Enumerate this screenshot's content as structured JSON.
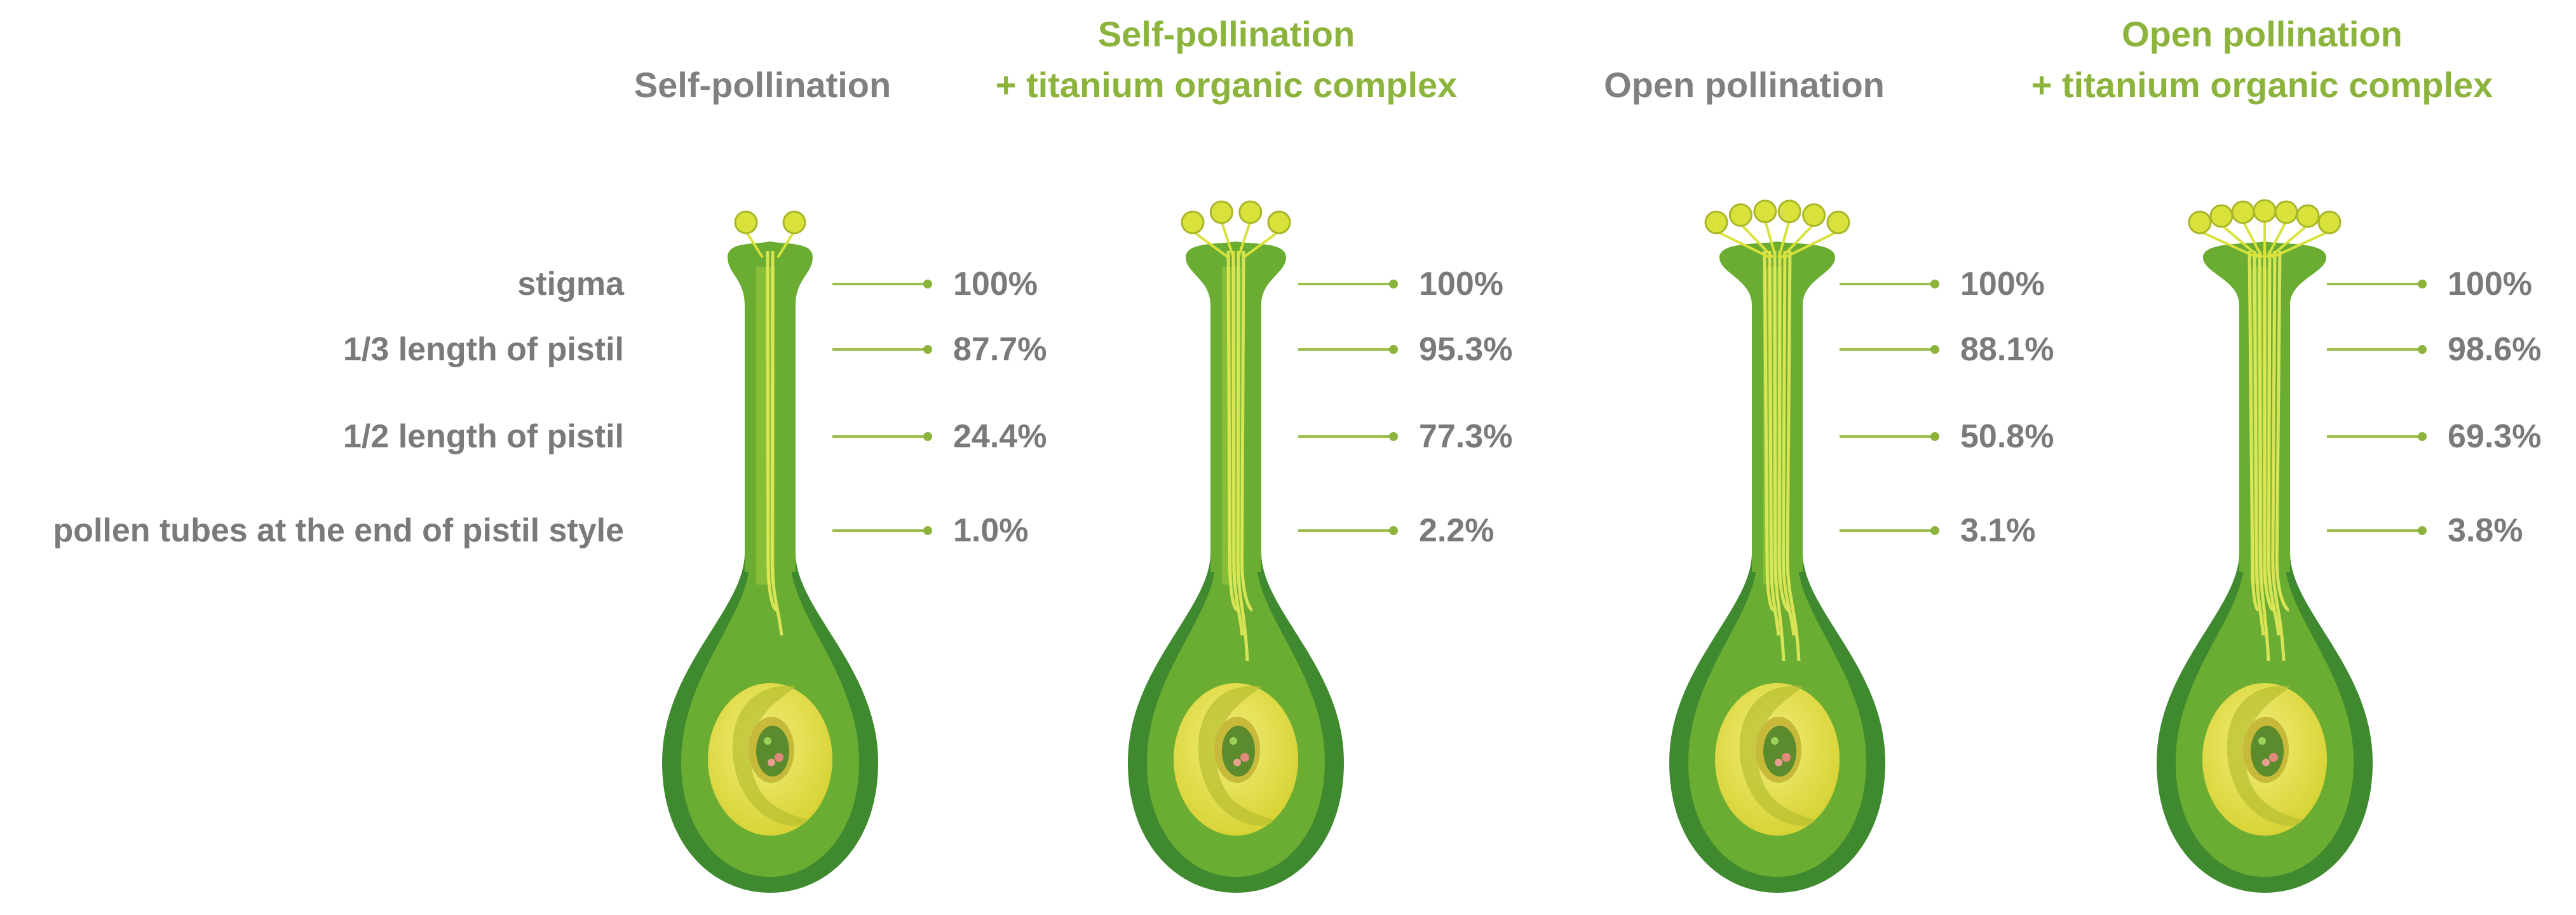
{
  "rows": [
    {
      "label": "stigma"
    },
    {
      "label": "1/3 length of pistil"
    },
    {
      "label": "1/2 length of pistil"
    },
    {
      "label": "pollen tubes at the end of pistil style"
    }
  ],
  "groups": [
    {
      "line1": "",
      "line2": "Self-pollination",
      "accent": "#808080",
      "stamens": 2,
      "values": [
        "100%",
        "87.7%",
        "24.4%",
        "1.0%"
      ]
    },
    {
      "line1": "Self-pollination",
      "line2": "+ titanium organic complex",
      "accent": "#8cb43c",
      "stamens": 4,
      "values": [
        "100%",
        "95.3%",
        "77.3%",
        "2.2%"
      ]
    },
    {
      "line1": "",
      "line2": "Open pollination",
      "accent": "#808080",
      "stamens": 6,
      "values": [
        "100%",
        "88.1%",
        "50.8%",
        "3.1%"
      ]
    },
    {
      "line1": "Open pollination",
      "line2": "+ titanium organic complex",
      "accent": "#8cb43c",
      "stamens": 7,
      "values": [
        "100%",
        "98.6%",
        "69.3%",
        "3.8%"
      ]
    }
  ],
  "colors": {
    "label_gray": "#7a7a7a",
    "title_green": "#8cb43c",
    "pistil_dark": "#3f8a2f",
    "pistil_mid": "#6aad32",
    "pistil_light": "#9ccd3c",
    "ovule_yellow": "#e4e04a",
    "pollen_yellow": "#d9e23a"
  }
}
